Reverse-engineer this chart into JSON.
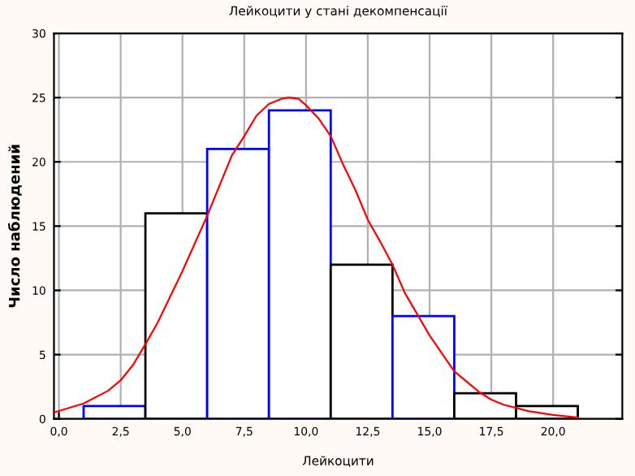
{
  "chart_data": {
    "type": "histogram",
    "title": "Лейкоцити у стані декомпенсації",
    "xlabel": "Лейкоцити",
    "ylabel": "Число наблюдений",
    "bins": [
      1.0,
      3.5,
      6.0,
      8.5,
      11.0,
      13.5,
      16.0,
      18.5,
      21.0
    ],
    "values": [
      1,
      16,
      21,
      24,
      12,
      8,
      2,
      1
    ],
    "colors": [
      "#0000ff",
      "#000000",
      "#0000ff",
      "#0000ff",
      "#000000",
      "#0000ff",
      "#000000",
      "#000000"
    ],
    "series": [
      {
        "type": "line",
        "color": "#ff0000",
        "x": [
          -0.2,
          1,
          2,
          2.5,
          3,
          3.5,
          4,
          5,
          6,
          7,
          7.5,
          8,
          8.5,
          9,
          9.3,
          9.7,
          10,
          10.5,
          11,
          11.5,
          12,
          12.5,
          13,
          13.5,
          14,
          15,
          16,
          17,
          17.5,
          18,
          19,
          20,
          21
        ],
        "values": [
          0.5,
          1.2,
          2.2,
          3,
          4.2,
          5.8,
          7.5,
          11.5,
          15.8,
          20.5,
          22,
          23.6,
          24.5,
          24.9,
          25,
          24.9,
          24.4,
          23.4,
          22,
          19.8,
          17.8,
          15.5,
          13.8,
          12,
          9.8,
          6.5,
          3.7,
          2.1,
          1.5,
          1.1,
          0.6,
          0.3,
          0.1
        ]
      }
    ],
    "xlim": [
      -0.2,
      22.8
    ],
    "ylim": [
      0,
      30
    ],
    "xticks": [
      {
        "value": 0,
        "label": "0,0"
      },
      {
        "value": 2.5,
        "label": "2,5"
      },
      {
        "value": 5,
        "label": "5,0"
      },
      {
        "value": 7.5,
        "label": "7,5"
      },
      {
        "value": 10,
        "label": "10,0"
      },
      {
        "value": 12.5,
        "label": "12,5"
      },
      {
        "value": 15,
        "label": "15,0"
      },
      {
        "value": 17.5,
        "label": "17,5"
      },
      {
        "value": 20,
        "label": "20,0"
      }
    ],
    "yticks": [
      0,
      5,
      10,
      15,
      20,
      25,
      30
    ],
    "grid": true
  }
}
